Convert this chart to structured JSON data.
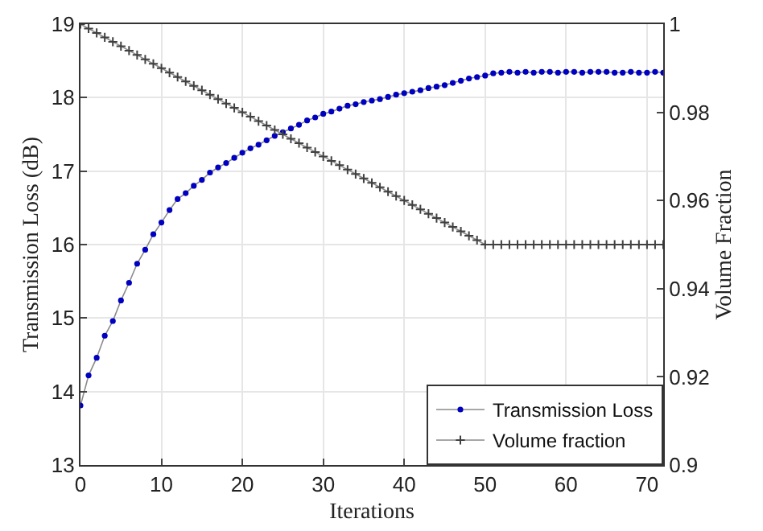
{
  "chart_data": {
    "type": "line",
    "xlabel": "Iterations",
    "ylabel": "Transmission Loss (dB)",
    "y2label": "Volume Fraction",
    "x": [
      0,
      1,
      2,
      3,
      4,
      5,
      6,
      7,
      8,
      9,
      10,
      11,
      12,
      13,
      14,
      15,
      16,
      17,
      18,
      19,
      20,
      21,
      22,
      23,
      24,
      25,
      26,
      27,
      28,
      29,
      30,
      31,
      32,
      33,
      34,
      35,
      36,
      37,
      38,
      39,
      40,
      41,
      42,
      43,
      44,
      45,
      46,
      47,
      48,
      49,
      50,
      51,
      52,
      53,
      54,
      55,
      56,
      57,
      58,
      59,
      60,
      61,
      62,
      63,
      64,
      65,
      66,
      67,
      68,
      69,
      70,
      71,
      72
    ],
    "series": [
      {
        "name": "Transmission Loss",
        "color": "#0000c0",
        "marker": "circle",
        "values": [
          13.81,
          14.22,
          14.46,
          14.76,
          14.96,
          15.24,
          15.48,
          15.74,
          15.93,
          16.14,
          16.3,
          16.47,
          16.62,
          16.7,
          16.8,
          16.88,
          16.98,
          17.05,
          17.11,
          17.18,
          17.25,
          17.31,
          17.36,
          17.42,
          17.48,
          17.53,
          17.58,
          17.63,
          17.69,
          17.73,
          17.78,
          17.81,
          17.85,
          17.89,
          17.91,
          17.94,
          17.96,
          17.98,
          18.01,
          18.04,
          18.06,
          18.08,
          18.1,
          18.13,
          18.15,
          18.17,
          18.2,
          18.23,
          18.26,
          18.28,
          18.3,
          18.33,
          18.34,
          18.35,
          18.34,
          18.35,
          18.34,
          18.35,
          18.35,
          18.34,
          18.35,
          18.35,
          18.34,
          18.35,
          18.35,
          18.35,
          18.34,
          18.34,
          18.35,
          18.34,
          18.34,
          18.35,
          18.34
        ]
      },
      {
        "name": "Volume fraction",
        "color": "#404040",
        "marker": "cross",
        "axis": "y2",
        "values": [
          1,
          0.999,
          0.998,
          0.997,
          0.996,
          0.995,
          0.994,
          0.993,
          0.992,
          0.991,
          0.99,
          0.989,
          0.988,
          0.987,
          0.986,
          0.985,
          0.984,
          0.983,
          0.982,
          0.981,
          0.98,
          0.979,
          0.978,
          0.977,
          0.976,
          0.975,
          0.974,
          0.973,
          0.972,
          0.971,
          0.97,
          0.969,
          0.968,
          0.967,
          0.966,
          0.965,
          0.964,
          0.963,
          0.962,
          0.961,
          0.96,
          0.959,
          0.958,
          0.957,
          0.956,
          0.955,
          0.954,
          0.953,
          0.952,
          0.951,
          0.95,
          0.95,
          0.95,
          0.95,
          0.95,
          0.95,
          0.95,
          0.95,
          0.95,
          0.95,
          0.95,
          0.95,
          0.95,
          0.95,
          0.95,
          0.95,
          0.95,
          0.95,
          0.95,
          0.95,
          0.95,
          0.95,
          0.95
        ]
      }
    ],
    "xlim": [
      0,
      72
    ],
    "xticks": [
      0,
      10,
      20,
      30,
      40,
      50,
      60,
      70
    ],
    "ylim": [
      13,
      19
    ],
    "yticks": [
      13,
      14,
      15,
      16,
      17,
      18,
      19
    ],
    "y2lim": [
      0.9,
      1
    ],
    "y2ticks": [
      {
        "value": 0.9,
        "label": "0.9"
      },
      0.92,
      0.94,
      0.96,
      0.98,
      1
    ],
    "grid": true,
    "legend": "bottom right",
    "line_style": "solid"
  }
}
